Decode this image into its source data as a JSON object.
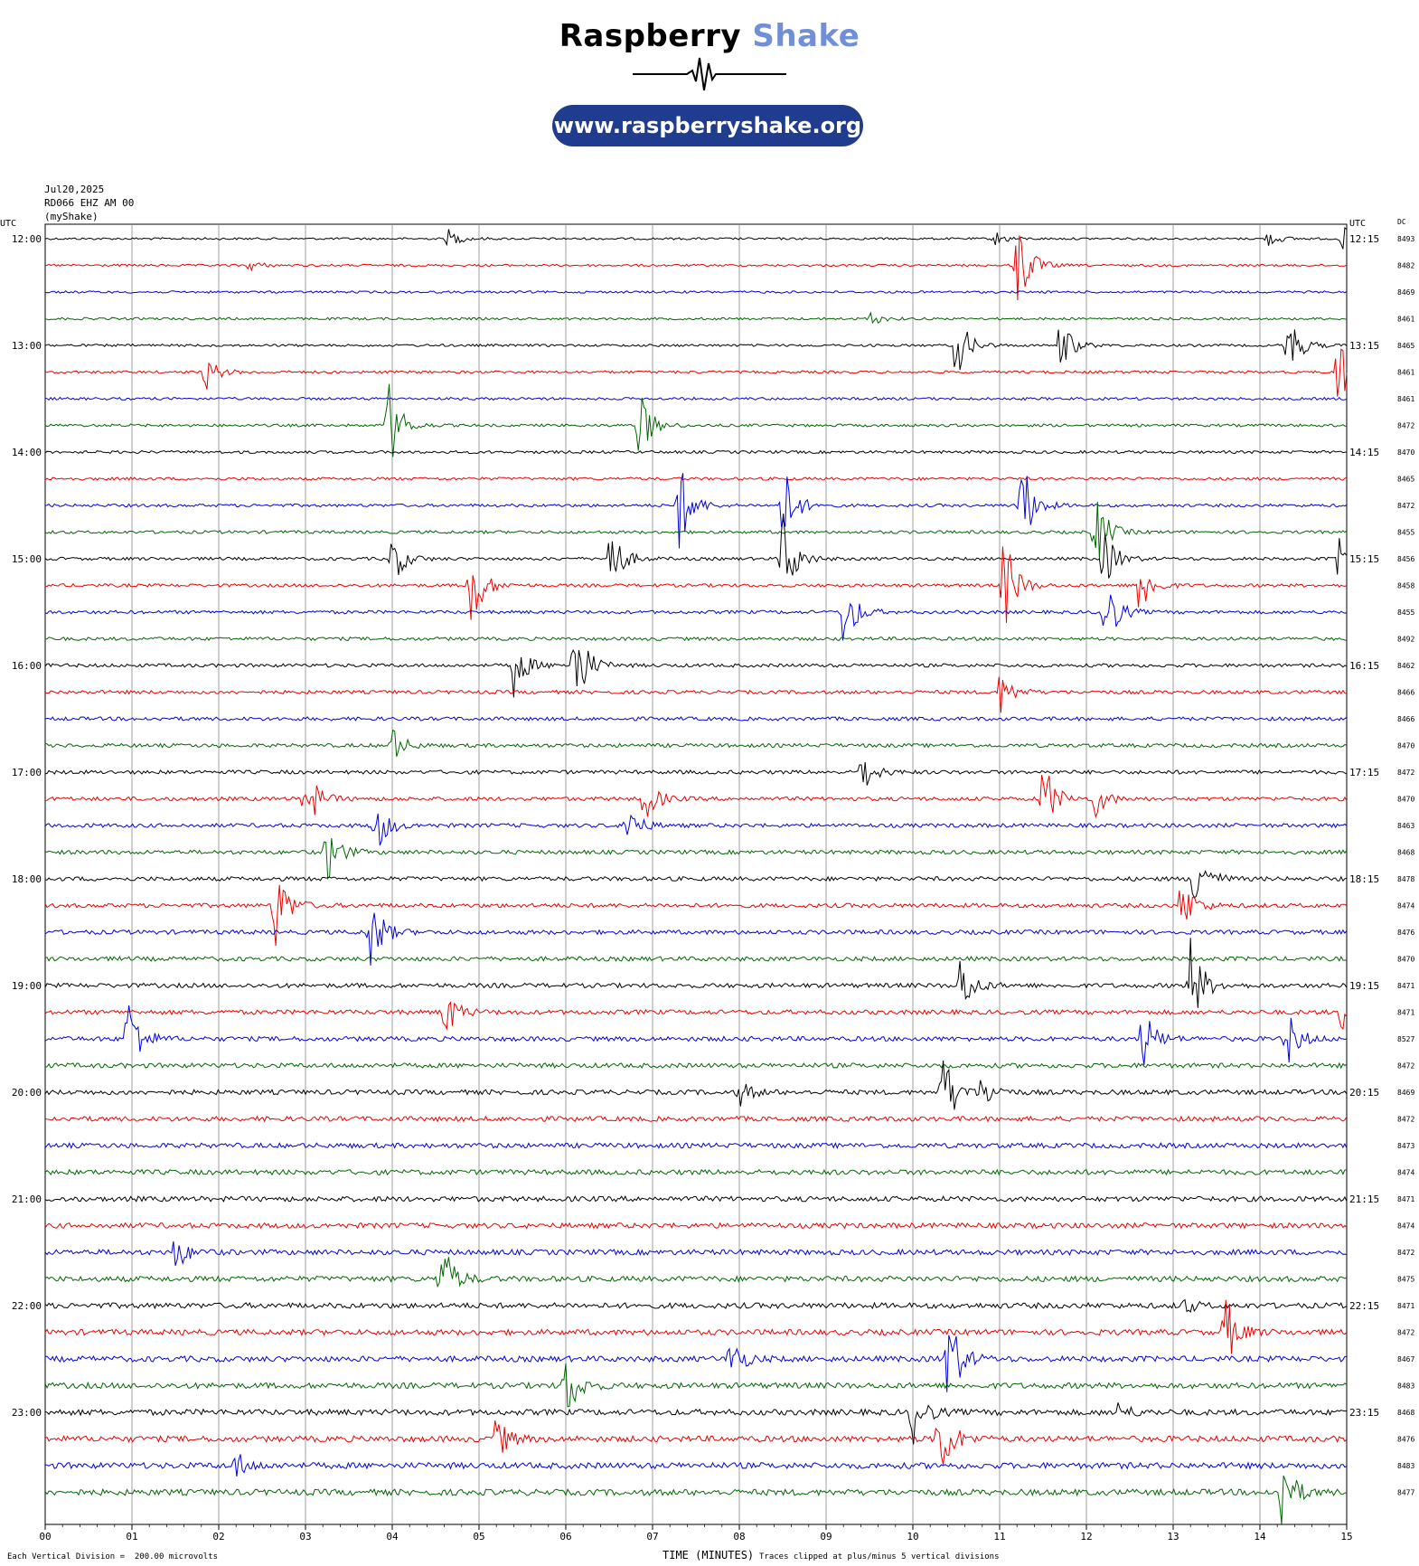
{
  "header": {
    "brand_part1": "Raspberry",
    "brand_part2": "Shake",
    "url": "www.raspberryshake.org",
    "brand_color": "#6f8fd8",
    "pill_color": "#1f3c8f"
  },
  "meta": {
    "date": "Jul20,2025",
    "station": "RD066 EHZ AM 00",
    "network": "(myShake)"
  },
  "chart_data": {
    "type": "line",
    "title": "",
    "xlabel": "TIME (MINUTES)",
    "ylabel": "",
    "left_axis_label": "UTC",
    "right_axis_label": "UTC",
    "dc_label": "DC",
    "x_ticks": [
      "00",
      "01",
      "02",
      "03",
      "04",
      "05",
      "06",
      "07",
      "08",
      "09",
      "10",
      "11",
      "12",
      "13",
      "14",
      "15"
    ],
    "xlim": [
      0,
      15
    ],
    "grid": true,
    "left_hour_labels": [
      "12:00",
      "13:00",
      "14:00",
      "15:00",
      "16:00",
      "17:00",
      "18:00",
      "19:00",
      "20:00",
      "21:00",
      "22:00",
      "23:00"
    ],
    "right_hour_labels": [
      "12:15",
      "13:15",
      "14:15",
      "15:15",
      "16:15",
      "17:15",
      "18:15",
      "19:15",
      "20:15",
      "21:15",
      "22:15",
      "23:15"
    ],
    "trace_colors": [
      "#000000",
      "#ee0000",
      "#0000dd",
      "#006600"
    ],
    "dc_values": [
      8493,
      8482,
      8469,
      8461,
      8465,
      8461,
      8461,
      8472,
      8470,
      8465,
      8472,
      8455,
      8456,
      8458,
      8455,
      8492,
      8462,
      8466,
      8466,
      8470,
      8472,
      8470,
      8463,
      8468,
      8478,
      8474,
      8476,
      8470,
      8471,
      8471,
      8527,
      8472,
      8469,
      8472,
      8473,
      8474,
      8471,
      8474,
      8472,
      8475,
      8471,
      8472,
      8467,
      8483,
      8468,
      8476,
      8483,
      8477
    ],
    "events": [
      {
        "trace": 0,
        "t": 4.65,
        "amp": 10
      },
      {
        "trace": 0,
        "t": 10.95,
        "amp": 8
      },
      {
        "trace": 0,
        "t": 14.1,
        "amp": 8
      },
      {
        "trace": 0,
        "t": 14.95,
        "amp": 14
      },
      {
        "trace": 1,
        "t": 11.2,
        "amp": 60
      },
      {
        "trace": 1,
        "t": 2.35,
        "amp": 6
      },
      {
        "trace": 3,
        "t": 9.5,
        "amp": 8
      },
      {
        "trace": 4,
        "t": 10.5,
        "amp": 40
      },
      {
        "trace": 4,
        "t": 11.7,
        "amp": 30
      },
      {
        "trace": 4,
        "t": 14.3,
        "amp": 45
      },
      {
        "trace": 5,
        "t": 1.85,
        "amp": 20
      },
      {
        "trace": 5,
        "t": 14.9,
        "amp": 50
      },
      {
        "trace": 7,
        "t": 3.95,
        "amp": 55
      },
      {
        "trace": 7,
        "t": 6.85,
        "amp": 40
      },
      {
        "trace": 10,
        "t": 7.3,
        "amp": 55
      },
      {
        "trace": 10,
        "t": 8.5,
        "amp": 50
      },
      {
        "trace": 10,
        "t": 11.25,
        "amp": 55
      },
      {
        "trace": 11,
        "t": 12.1,
        "amp": 45
      },
      {
        "trace": 12,
        "t": 4.0,
        "amp": 30
      },
      {
        "trace": 12,
        "t": 6.5,
        "amp": 45
      },
      {
        "trace": 12,
        "t": 8.5,
        "amp": 55
      },
      {
        "trace": 12,
        "t": 12.2,
        "amp": 35
      },
      {
        "trace": 12,
        "t": 14.9,
        "amp": 25
      },
      {
        "trace": 13,
        "t": 4.9,
        "amp": 55
      },
      {
        "trace": 13,
        "t": 11.05,
        "amp": 60
      },
      {
        "trace": 13,
        "t": 12.6,
        "amp": 40
      },
      {
        "trace": 14,
        "t": 9.2,
        "amp": 45
      },
      {
        "trace": 14,
        "t": 12.2,
        "amp": 50
      },
      {
        "trace": 16,
        "t": 6.1,
        "amp": 60
      },
      {
        "trace": 16,
        "t": 5.4,
        "amp": 35
      },
      {
        "trace": 17,
        "t": 11.0,
        "amp": 25
      },
      {
        "trace": 19,
        "t": 4.0,
        "amp": 20
      },
      {
        "trace": 20,
        "t": 9.4,
        "amp": 25
      },
      {
        "trace": 21,
        "t": 3.0,
        "amp": 40
      },
      {
        "trace": 21,
        "t": 6.9,
        "amp": 30
      },
      {
        "trace": 21,
        "t": 11.5,
        "amp": 45
      },
      {
        "trace": 21,
        "t": 12.1,
        "amp": 20
      },
      {
        "trace": 22,
        "t": 3.8,
        "amp": 35
      },
      {
        "trace": 22,
        "t": 6.7,
        "amp": 25
      },
      {
        "trace": 23,
        "t": 3.25,
        "amp": 35
      },
      {
        "trace": 24,
        "t": 13.25,
        "amp": 45
      },
      {
        "trace": 25,
        "t": 2.65,
        "amp": 50
      },
      {
        "trace": 25,
        "t": 13.1,
        "amp": 35
      },
      {
        "trace": 26,
        "t": 3.75,
        "amp": 45
      },
      {
        "trace": 28,
        "t": 10.55,
        "amp": 35
      },
      {
        "trace": 28,
        "t": 13.2,
        "amp": 55
      },
      {
        "trace": 29,
        "t": 4.6,
        "amp": 30
      },
      {
        "trace": 29,
        "t": 14.95,
        "amp": 25
      },
      {
        "trace": 30,
        "t": 0.95,
        "amp": 55
      },
      {
        "trace": 30,
        "t": 12.65,
        "amp": 35
      },
      {
        "trace": 30,
        "t": 14.3,
        "amp": 35
      },
      {
        "trace": 32,
        "t": 10.35,
        "amp": 50
      },
      {
        "trace": 32,
        "t": 10.8,
        "amp": 20
      },
      {
        "trace": 32,
        "t": 8.0,
        "amp": 15
      },
      {
        "trace": 38,
        "t": 1.5,
        "amp": 20
      },
      {
        "trace": 39,
        "t": 4.55,
        "amp": 50
      },
      {
        "trace": 40,
        "t": 13.1,
        "amp": 10
      },
      {
        "trace": 41,
        "t": 13.6,
        "amp": 40
      },
      {
        "trace": 42,
        "t": 10.4,
        "amp": 60
      },
      {
        "trace": 42,
        "t": 7.9,
        "amp": 25
      },
      {
        "trace": 43,
        "t": 6.0,
        "amp": 40
      },
      {
        "trace": 44,
        "t": 10.0,
        "amp": 35
      },
      {
        "trace": 44,
        "t": 12.35,
        "amp": 12
      },
      {
        "trace": 45,
        "t": 10.3,
        "amp": 55
      },
      {
        "trace": 45,
        "t": 5.2,
        "amp": 25
      },
      {
        "trace": 46,
        "t": 2.2,
        "amp": 15
      },
      {
        "trace": 47,
        "t": 14.25,
        "amp": 45
      }
    ]
  },
  "footer": {
    "left_note": "Each Vertical Division =  200.00 microvolts",
    "clip_note": "Traces clipped at plus/minus 5 vertical divisions"
  }
}
